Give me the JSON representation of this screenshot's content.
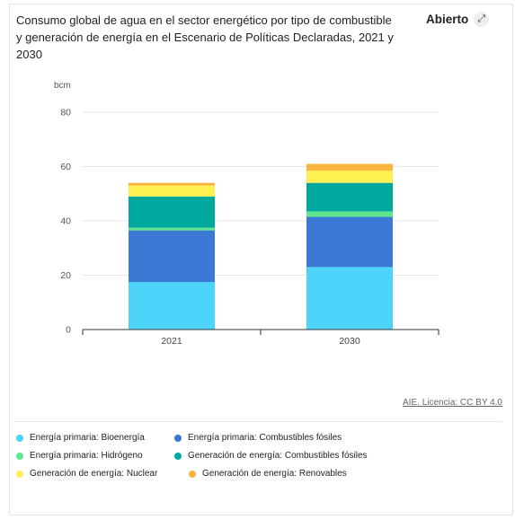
{
  "header": {
    "title": "Consumo global de agua en el sector energético por tipo de combustible y generación de energía en el Escenario de Políticas Declaradas, 2021 y 2030",
    "open_label": "Abierto",
    "open_icon": "expand-icon"
  },
  "source_link": "AIE. Licencia: CC BY 4.0",
  "colors": {
    "bioenergy": "#4dd4fb",
    "fossil_primary": "#3c79d5",
    "hydrogen": "#5fe68f",
    "fossil_generation": "#00a99d",
    "nuclear": "#fdf050",
    "renewables": "#fbb440"
  },
  "chart_data": {
    "type": "bar",
    "stacked": true,
    "categories": [
      "2021",
      "2030"
    ],
    "ylabel": "bcm",
    "ylim": [
      0,
      80
    ],
    "yticks": [
      0,
      20,
      40,
      60,
      80
    ],
    "grid": true,
    "legend_position": "bottom",
    "series": [
      {
        "name": "Energía primaria: Bioenergía",
        "color": "#4dd4fb",
        "values": [
          17.5,
          23
        ]
      },
      {
        "name": "Energía primaria: Combustibles fósiles",
        "color": "#3c79d5",
        "values": [
          19,
          18.5
        ]
      },
      {
        "name": "Energía primaria: Hidrógeno",
        "color": "#5fe68f",
        "values": [
          1,
          2
        ]
      },
      {
        "name": "Generación de energía: Combustibles fósiles",
        "color": "#00a99d",
        "values": [
          11.5,
          10.5
        ]
      },
      {
        "name": "Generación de energía: Nuclear",
        "color": "#fdf050",
        "values": [
          4,
          4.5
        ]
      },
      {
        "name": "Generación de energía: Renovables",
        "color": "#fbb440",
        "values": [
          1,
          2.5
        ]
      }
    ]
  }
}
